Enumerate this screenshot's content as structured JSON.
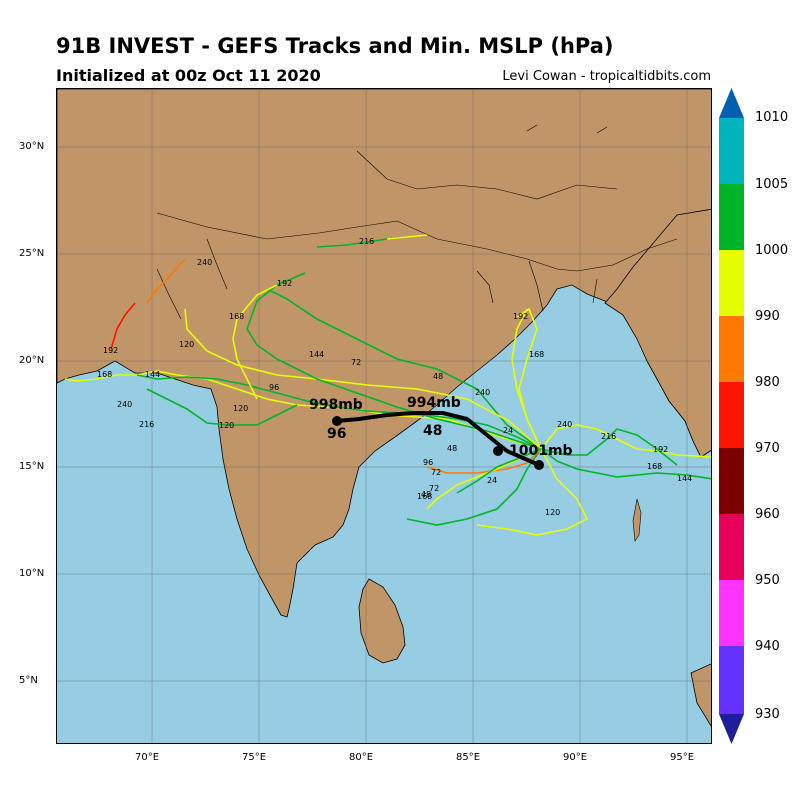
{
  "header": {
    "title": "91B INVEST - GEFS Tracks and Min. MSLP (hPa)",
    "subtitle": "Initialized at 00z Oct 11 2020",
    "credit": "Levi Cowan - tropicaltidbits.com"
  },
  "axes": {
    "lat_labels": [
      "30°N",
      "25°N",
      "20°N",
      "15°N",
      "10°N",
      "5°N"
    ],
    "lon_labels": [
      "70°E",
      "75°E",
      "80°E",
      "85°E",
      "90°E",
      "95°E"
    ]
  },
  "colorbar": {
    "labels": [
      "1010",
      "1005",
      "1000",
      "990",
      "980",
      "970",
      "960",
      "950",
      "940",
      "930"
    ],
    "colors": [
      "#0060b0",
      "#00b4bc",
      "#00b428",
      "#e6ff00",
      "#ff7800",
      "#ff1400",
      "#7d0000",
      "#e6005a",
      "#ff32ff",
      "#6432ff",
      "#1e1e96"
    ]
  },
  "colors": {
    "ocean": "#96cde3",
    "land": "#c09669",
    "mean_track": "#000000"
  },
  "mean_track": {
    "pressure_labels": [
      "1001mb",
      "994mb",
      "998mb"
    ],
    "hour_labels": [
      "48",
      "96"
    ]
  },
  "member_labels": [
    "240",
    "216",
    "192",
    "168",
    "144",
    "120",
    "96",
    "72",
    "48",
    "24",
    "192",
    "168",
    "144",
    "120",
    "240",
    "216",
    "120",
    "96",
    "72",
    "48",
    "24",
    "144",
    "168",
    "120",
    "72",
    "48",
    "240",
    "192",
    "216",
    "168",
    "240",
    "192",
    "168"
  ]
}
